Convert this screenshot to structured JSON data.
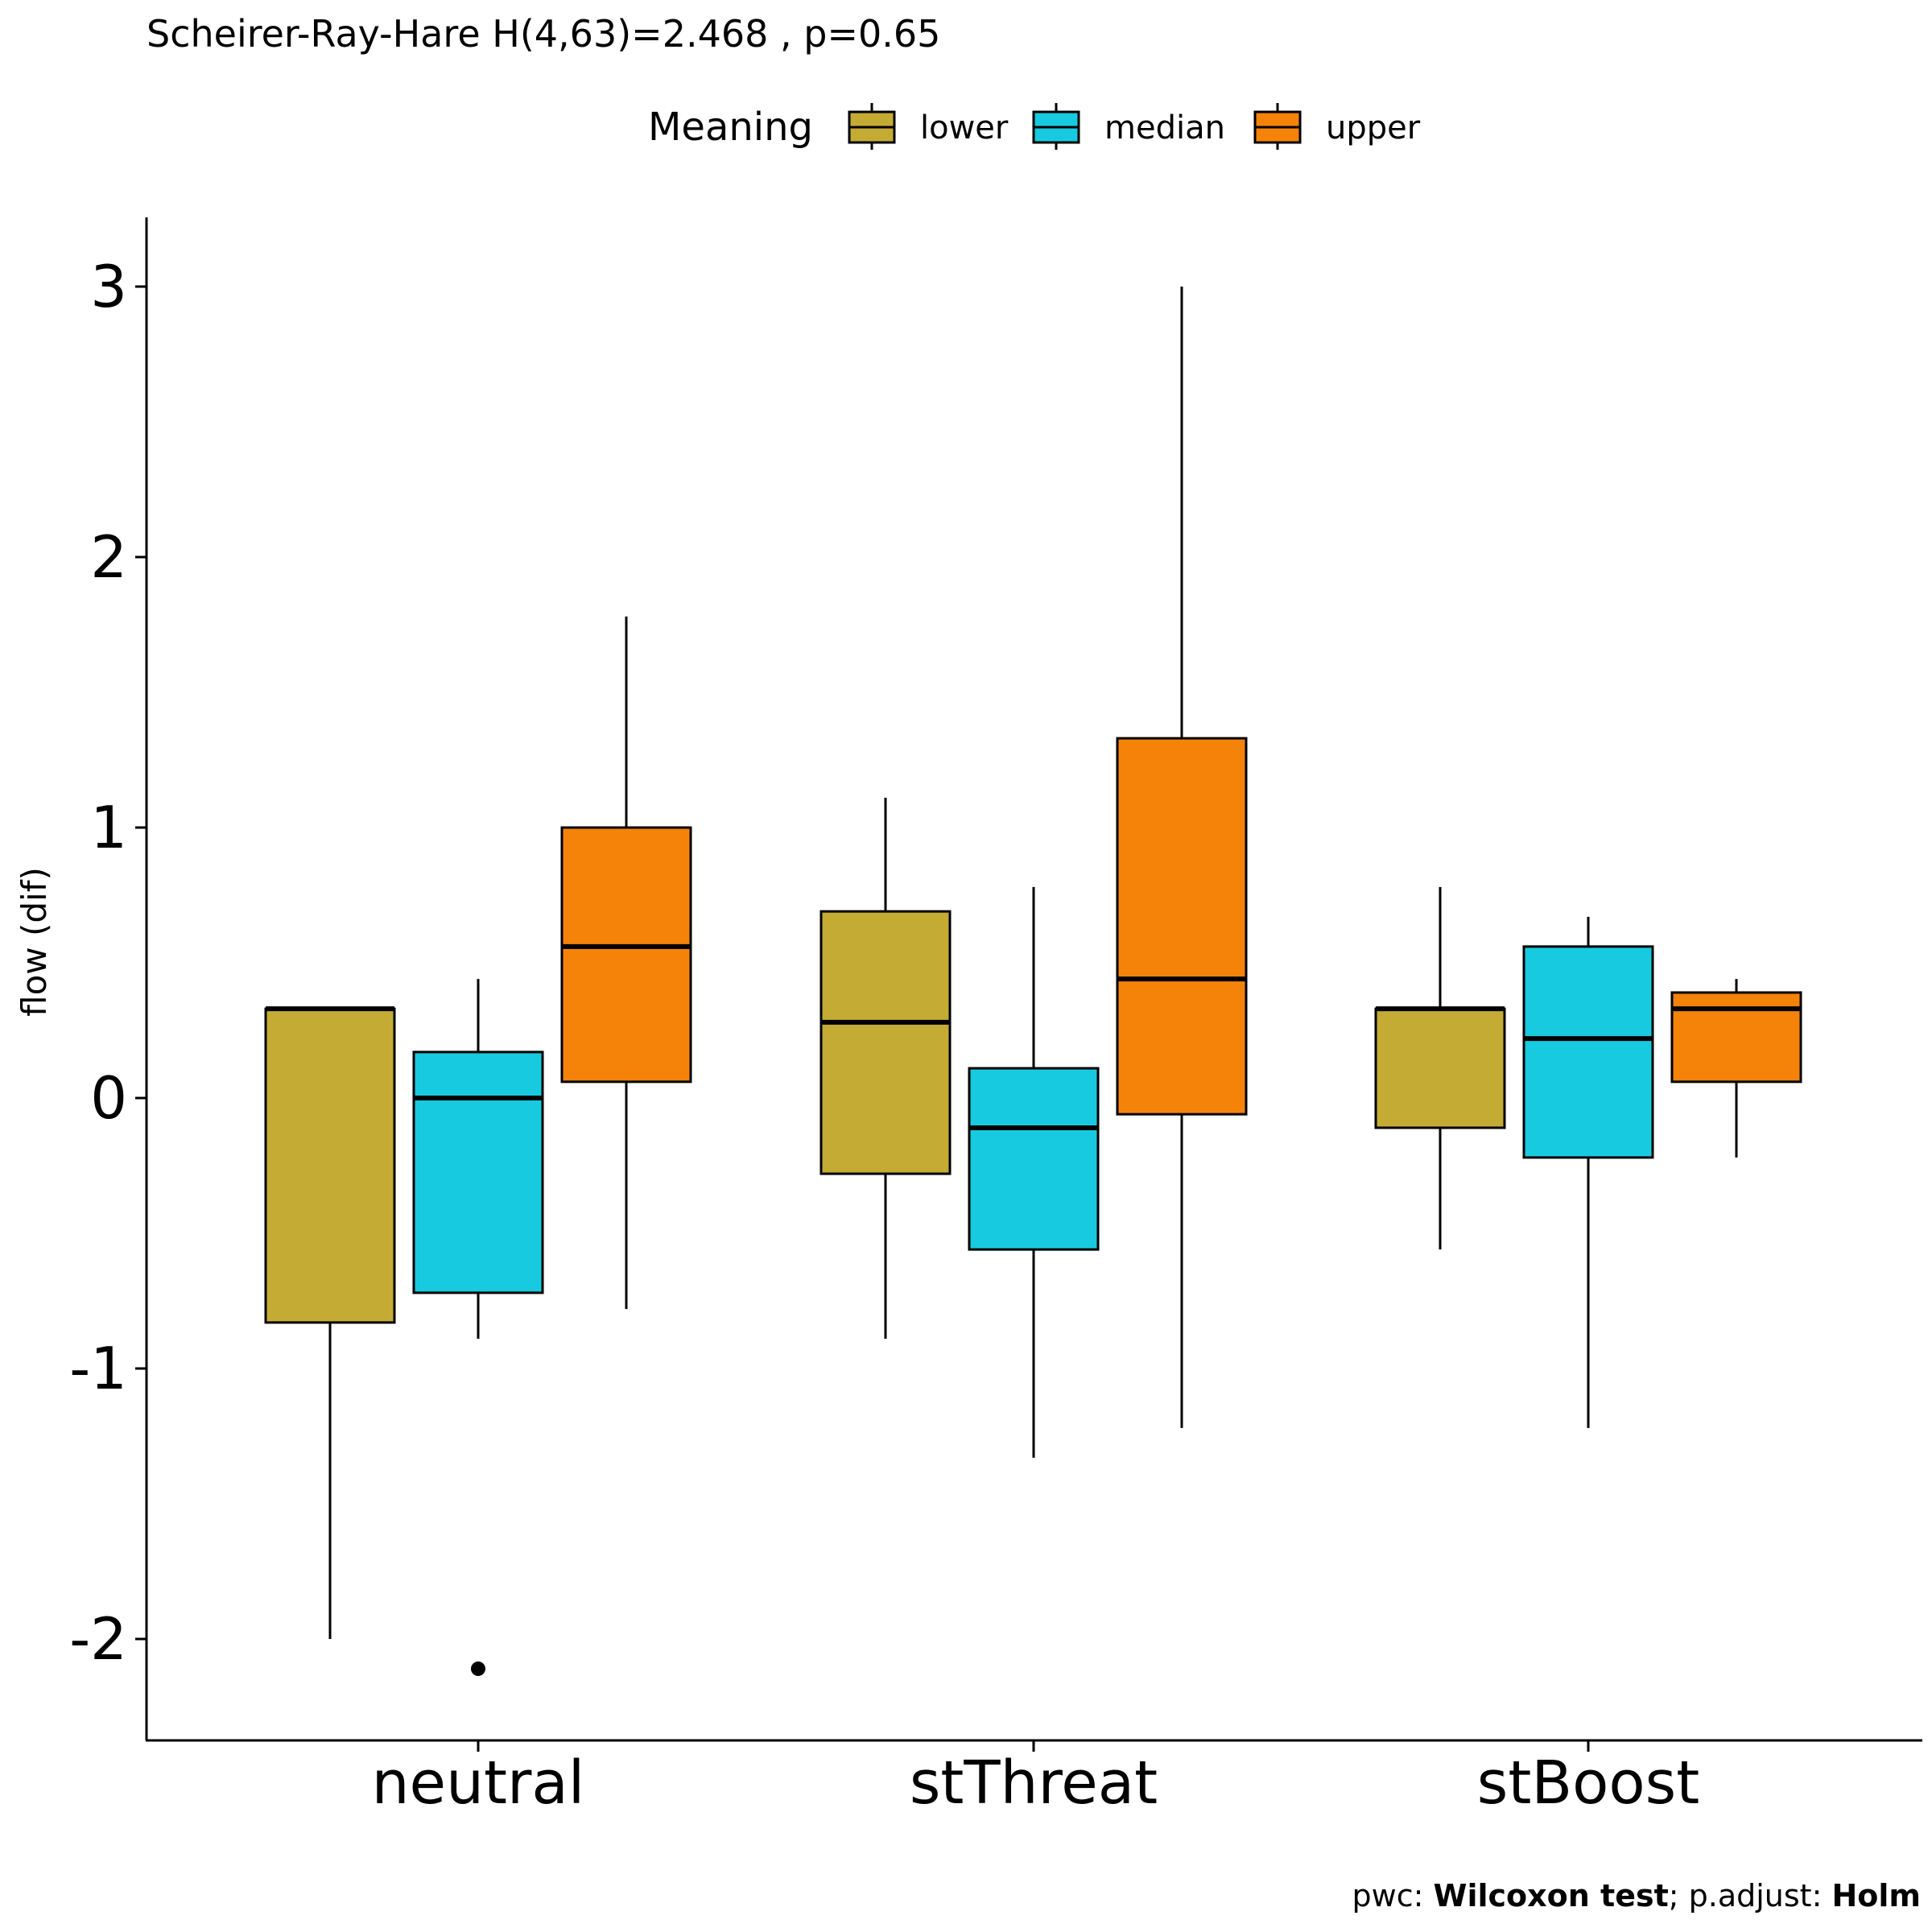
{
  "chart_data": {
    "type": "box",
    "title": "Scheirer-Ray-Hare H(4,63)=2.468 , p=0.65",
    "xlabel": "",
    "ylabel": "flow (dif)",
    "ylim": [
      -2.36,
      3.25
    ],
    "yticks": [
      -2,
      -1,
      0,
      1,
      2,
      3
    ],
    "ytick_labels": [
      "-2",
      "-1",
      "0",
      "1",
      "2",
      "3"
    ],
    "categories": [
      "neutral",
      "stThreat",
      "stBoost"
    ],
    "grid": false,
    "legend": {
      "title": "Meaning",
      "position": "top",
      "entries": [
        {
          "label": "lower",
          "color": "#C4AB34"
        },
        {
          "label": "median",
          "color": "#18CADF"
        },
        {
          "label": "upper",
          "color": "#F5830A"
        }
      ]
    },
    "series": [
      {
        "name": "lower",
        "color": "#C4AB34",
        "boxes": [
          {
            "category": "neutral",
            "whisker_low": -2.0,
            "q1": -0.83,
            "median": 0.33,
            "q3": 0.33,
            "whisker_high": 0.33,
            "outliers": []
          },
          {
            "category": "stThreat",
            "whisker_low": -0.89,
            "q1": -0.28,
            "median": 0.28,
            "q3": 0.69,
            "whisker_high": 1.11,
            "outliers": []
          },
          {
            "category": "stBoost",
            "whisker_low": -0.56,
            "q1": -0.11,
            "median": 0.33,
            "q3": 0.33,
            "whisker_high": 0.78,
            "outliers": []
          }
        ]
      },
      {
        "name": "median",
        "color": "#18CADF",
        "boxes": [
          {
            "category": "neutral",
            "whisker_low": -0.89,
            "q1": -0.72,
            "median": 0.0,
            "q3": 0.17,
            "whisker_high": 0.44,
            "outliers": [
              -2.11
            ]
          },
          {
            "category": "stThreat",
            "whisker_low": -1.33,
            "q1": -0.56,
            "median": -0.11,
            "q3": 0.11,
            "whisker_high": 0.78,
            "outliers": []
          },
          {
            "category": "stBoost",
            "whisker_low": -1.22,
            "q1": -0.22,
            "median": 0.22,
            "q3": 0.56,
            "whisker_high": 0.67,
            "outliers": []
          }
        ]
      },
      {
        "name": "upper",
        "color": "#F5830A",
        "boxes": [
          {
            "category": "neutral",
            "whisker_low": -0.78,
            "q1": 0.06,
            "median": 0.56,
            "q3": 1.0,
            "whisker_high": 1.78,
            "outliers": []
          },
          {
            "category": "stThreat",
            "whisker_low": -1.22,
            "q1": -0.06,
            "median": 0.44,
            "q3": 1.33,
            "whisker_high": 3.0,
            "outliers": []
          },
          {
            "category": "stBoost",
            "whisker_low": -0.22,
            "q1": 0.06,
            "median": 0.33,
            "q3": 0.39,
            "whisker_high": 0.44,
            "outliers": []
          }
        ]
      }
    ],
    "caption": {
      "prefix": "pwc: ",
      "test": "Wilcoxon test",
      "middle": "; p.adjust: ",
      "method": "Holm"
    }
  }
}
